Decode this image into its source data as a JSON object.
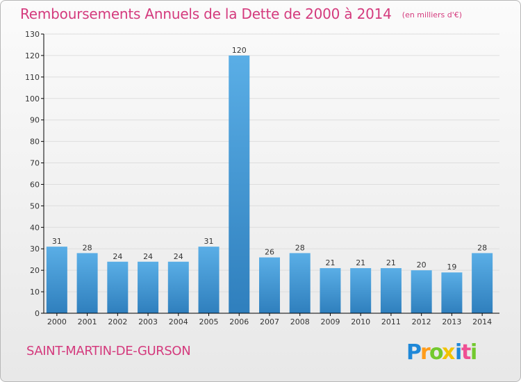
{
  "chart_data": {
    "type": "bar",
    "title": "Remboursements Annuels de la Dette de 2000 à 2014",
    "subtitle": "(en milliers d'€)",
    "categories": [
      "2000",
      "2001",
      "2002",
      "2003",
      "2004",
      "2005",
      "2006",
      "2007",
      "2008",
      "2009",
      "2010",
      "2011",
      "2012",
      "2013",
      "2014"
    ],
    "values": [
      31,
      28,
      24,
      24,
      24,
      31,
      120,
      26,
      28,
      21,
      21,
      21,
      20,
      19,
      28
    ],
    "ylim": [
      0,
      130
    ],
    "yticks": [
      0,
      10,
      20,
      30,
      40,
      50,
      60,
      70,
      80,
      90,
      100,
      110,
      120,
      130
    ],
    "grid": true,
    "data_labels": true,
    "legend": "none"
  },
  "footer": {
    "town": "SAINT-MARTIN-DE-GURSON",
    "logo": "Proxiti"
  },
  "colors": {
    "title": "#d43a7d",
    "bar_top": "#5aaee6",
    "bar_bottom": "#2f7fbd",
    "grid": "#dddddd",
    "axis": "#000000",
    "logo_p": "#1f88d8",
    "logo_r": "#ff9c1a",
    "logo_o": "#73c92e",
    "logo_x": "#f2c200",
    "logo_i": "#1f88d8",
    "logo_t": "#ef4f93",
    "logo_i2": "#73c92e"
  }
}
